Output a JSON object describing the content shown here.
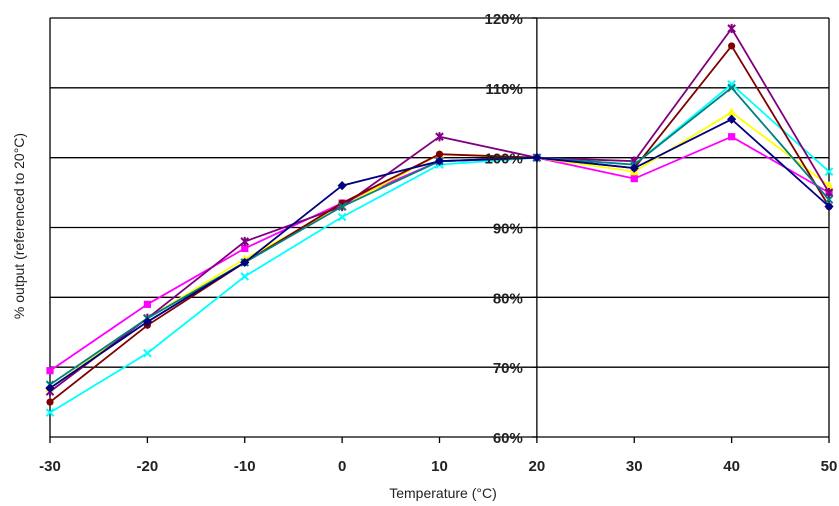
{
  "chart_data": {
    "type": "line",
    "xlabel": "Temperature (°C)",
    "ylabel": "% output (referenced to 20°C)",
    "x": [
      -30,
      -20,
      -10,
      0,
      10,
      20,
      30,
      40,
      50
    ],
    "xlim": [
      -30,
      50
    ],
    "ylim": [
      60,
      120
    ],
    "x_tick_labels": [
      "-30",
      "-20",
      "-10",
      "0",
      "10",
      "20",
      "30",
      "40",
      "50"
    ],
    "y_tick_labels": [
      "60%",
      "70%",
      "80%",
      "90%",
      "100%",
      "110%",
      "120%"
    ],
    "y_ticks": [
      60,
      70,
      80,
      90,
      100,
      110,
      120
    ],
    "grid": "horizontal",
    "legend": "none",
    "series": [
      {
        "color": "#ff00ff",
        "marker": "square",
        "values": [
          69.5,
          79,
          87,
          93.5,
          99.5,
          100,
          97,
          103,
          95
        ]
      },
      {
        "color": "#ffff00",
        "marker": "triangle",
        "values": [
          67,
          77,
          85.5,
          93,
          100.5,
          100,
          98,
          106.5,
          96
        ]
      },
      {
        "color": "#00ffff",
        "marker": "x",
        "values": [
          63.5,
          72,
          83,
          91.5,
          99,
          100,
          99,
          110.5,
          98
        ]
      },
      {
        "color": "#800080",
        "marker": "star",
        "values": [
          66.5,
          77,
          88,
          93,
          103,
          100,
          99.5,
          118.5,
          95
        ]
      },
      {
        "color": "#800000",
        "marker": "circle",
        "values": [
          65,
          76,
          85,
          93.5,
          100.5,
          100,
          98.5,
          116,
          93
        ]
      },
      {
        "color": "#008080",
        "marker": "x",
        "values": [
          67.5,
          77,
          85,
          93,
          99.5,
          100,
          99,
          110,
          94
        ]
      },
      {
        "color": "#000080",
        "marker": "diamond",
        "values": [
          67,
          76.5,
          85,
          96,
          99.5,
          100,
          98.5,
          105.5,
          93
        ]
      }
    ]
  }
}
